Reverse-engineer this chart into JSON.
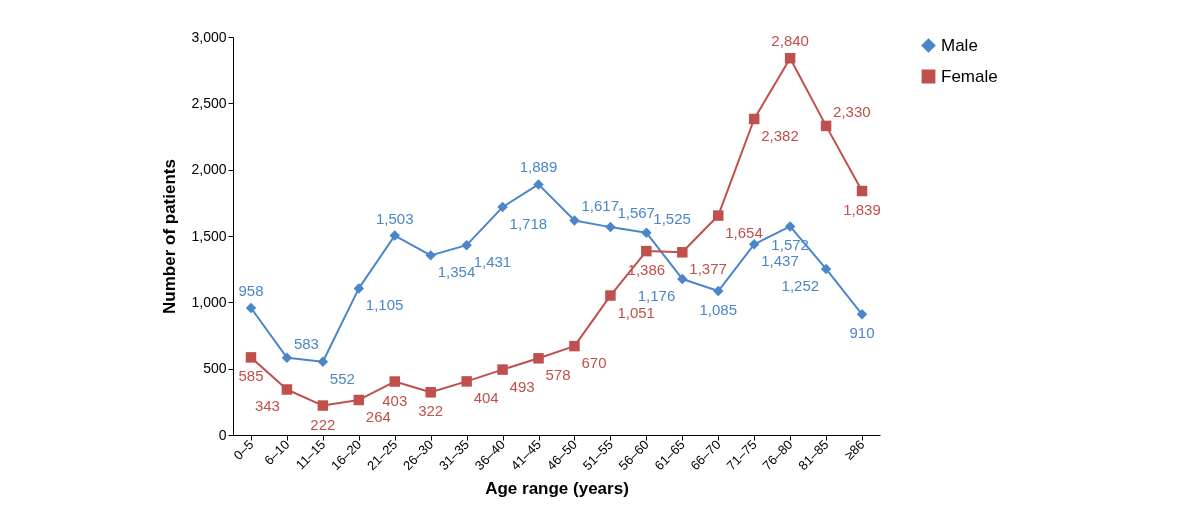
{
  "chart_data": {
    "type": "line",
    "xlabel": "Age range (years)",
    "ylabel": "Number of patients",
    "categories": [
      "0–5",
      "6–10",
      "11–15",
      "16–20",
      "21–25",
      "26–30",
      "31–35",
      "36–40",
      "41–45",
      "46–50",
      "51–55",
      "56–60",
      "61–65",
      "66–70",
      "71–75",
      "76–80",
      "81–85",
      "≥86"
    ],
    "series": [
      {
        "name": "Male",
        "color": "#4a86c8",
        "marker": "diamond",
        "values": [
          958,
          583,
          552,
          1105,
          1503,
          1354,
          1431,
          1718,
          1889,
          1617,
          1567,
          1525,
          1176,
          1085,
          1437,
          1572,
          1252,
          910
        ],
        "value_labels": [
          "958",
          "583",
          "552",
          "1,105",
          "1,503",
          "1,354",
          "1,431",
          "1,718",
          "1,889",
          "1,617",
          "1,567",
          "1,525",
          "1,176",
          "1,085",
          "1,437",
          "1,572",
          "1,252",
          "910"
        ]
      },
      {
        "name": "Female",
        "color": "#c0504d",
        "marker": "square",
        "values": [
          585,
          343,
          222,
          264,
          403,
          322,
          404,
          493,
          578,
          670,
          1051,
          1386,
          1377,
          1654,
          2382,
          2840,
          2330,
          1839
        ],
        "value_labels": [
          "585",
          "343",
          "222",
          "264",
          "403",
          "322",
          "404",
          "493",
          "578",
          "670",
          "1,051",
          "1,386",
          "1,377",
          "1,654",
          "2,382",
          "2,840",
          "2,330",
          "1,839"
        ]
      }
    ],
    "ylim": [
      0,
      3000
    ],
    "yticks": [
      0,
      500,
      {
        "value": 1000,
        "label": "1,000"
      },
      {
        "value": 1500,
        "label": "1,500"
      },
      {
        "value": 2000,
        "label": "2,000"
      },
      {
        "value": 2500,
        "label": "2,500"
      },
      {
        "value": 3000,
        "label": "3,000"
      }
    ],
    "grid": false,
    "legend": "top right",
    "line_style": "solid"
  }
}
